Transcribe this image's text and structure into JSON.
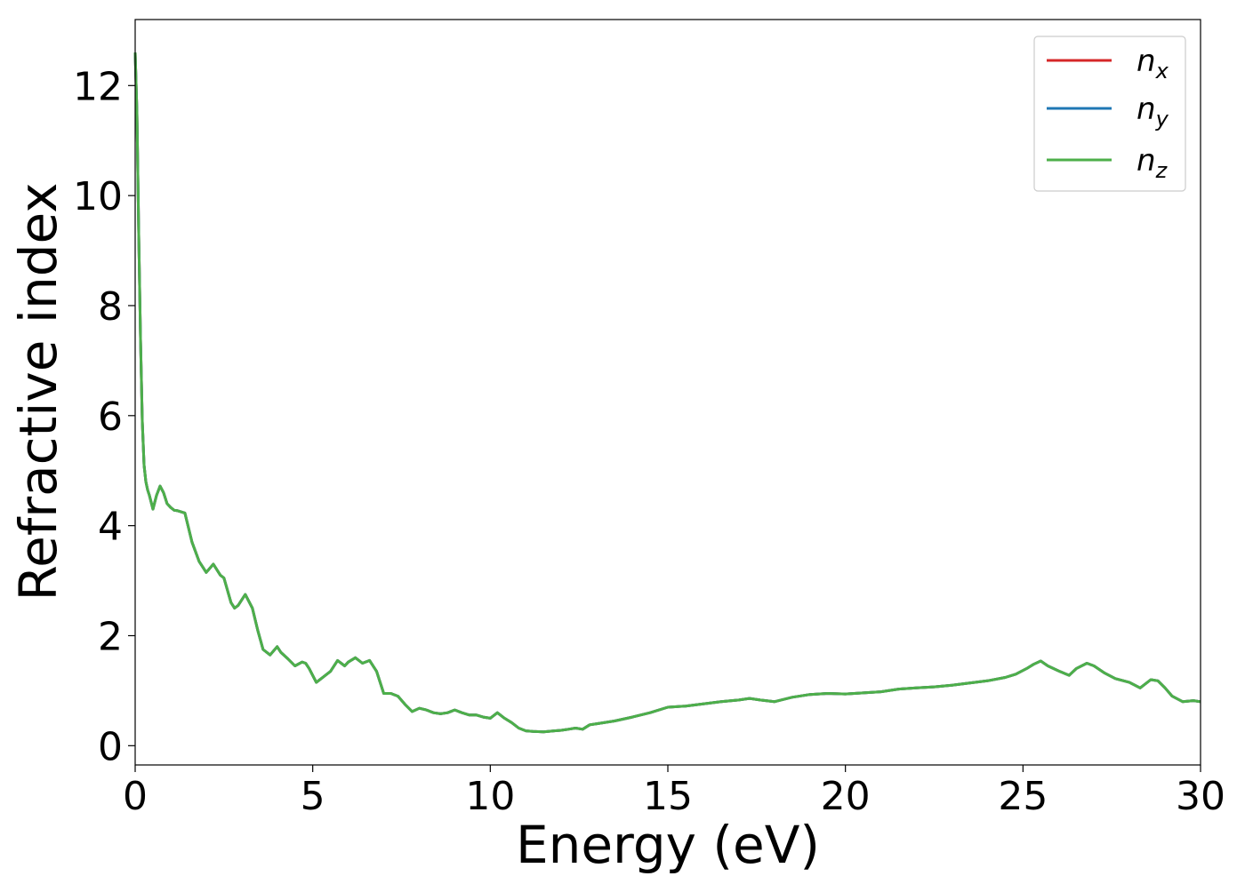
{
  "chart_data": {
    "type": "line",
    "xlabel": "Energy (eV)",
    "ylabel": "Refractive index",
    "xlim": [
      0,
      30
    ],
    "ylim": [
      -0.35,
      13.2
    ],
    "xticks": [
      0,
      5,
      10,
      15,
      20,
      25,
      30
    ],
    "yticks": [
      0,
      2,
      4,
      6,
      8,
      10,
      12
    ],
    "grid": false,
    "legend_position": "top-right",
    "series": [
      {
        "name": "n",
        "subscript": "x",
        "color": "#d62728"
      },
      {
        "name": "n",
        "subscript": "y",
        "color": "#1f77b4"
      },
      {
        "name": "n",
        "subscript": "z",
        "color": "#4daf4a"
      }
    ],
    "x": [
      0,
      0.05,
      0.1,
      0.15,
      0.2,
      0.25,
      0.3,
      0.35,
      0.4,
      0.5,
      0.6,
      0.7,
      0.8,
      0.9,
      1.0,
      1.1,
      1.2,
      1.4,
      1.6,
      1.8,
      1.9,
      2.0,
      2.2,
      2.4,
      2.5,
      2.7,
      2.8,
      2.9,
      3.1,
      3.3,
      3.45,
      3.6,
      3.8,
      4.0,
      4.1,
      4.3,
      4.5,
      4.7,
      4.8,
      4.9,
      5.1,
      5.3,
      5.5,
      5.7,
      5.9,
      6.0,
      6.2,
      6.4,
      6.6,
      6.8,
      7.0,
      7.2,
      7.4,
      7.6,
      7.8,
      8.0,
      8.2,
      8.4,
      8.6,
      8.8,
      9.0,
      9.2,
      9.4,
      9.6,
      9.8,
      10.0,
      10.2,
      10.4,
      10.6,
      10.8,
      11.0,
      11.2,
      11.5,
      11.8,
      12.0,
      12.2,
      12.4,
      12.6,
      12.8,
      13.0,
      13.5,
      14.0,
      14.5,
      15.0,
      15.5,
      16.0,
      16.5,
      17.0,
      17.3,
      17.6,
      18.0,
      18.5,
      19.0,
      19.5,
      20.0,
      20.5,
      21.0,
      21.5,
      22.0,
      22.5,
      23.0,
      23.5,
      24.0,
      24.5,
      24.8,
      25.1,
      25.3,
      25.5,
      25.7,
      26.0,
      26.3,
      26.5,
      26.8,
      27.0,
      27.3,
      27.6,
      28.0,
      28.3,
      28.6,
      28.8,
      29.0,
      29.2,
      29.5,
      29.8,
      30.0
    ],
    "y": [
      12.6,
      11.5,
      9.3,
      7.4,
      5.9,
      5.1,
      4.8,
      4.65,
      4.55,
      4.3,
      4.55,
      4.72,
      4.6,
      4.4,
      4.33,
      4.28,
      4.27,
      4.23,
      3.7,
      3.35,
      3.25,
      3.15,
      3.3,
      3.1,
      3.05,
      2.6,
      2.5,
      2.55,
      2.75,
      2.5,
      2.1,
      1.75,
      1.65,
      1.8,
      1.7,
      1.58,
      1.45,
      1.52,
      1.5,
      1.4,
      1.15,
      1.25,
      1.35,
      1.55,
      1.45,
      1.52,
      1.6,
      1.5,
      1.55,
      1.35,
      0.95,
      0.95,
      0.9,
      0.75,
      0.62,
      0.68,
      0.65,
      0.6,
      0.58,
      0.6,
      0.65,
      0.6,
      0.56,
      0.56,
      0.52,
      0.5,
      0.6,
      0.5,
      0.42,
      0.32,
      0.27,
      0.26,
      0.25,
      0.27,
      0.28,
      0.3,
      0.32,
      0.3,
      0.38,
      0.4,
      0.45,
      0.52,
      0.6,
      0.7,
      0.72,
      0.76,
      0.8,
      0.83,
      0.86,
      0.83,
      0.8,
      0.88,
      0.93,
      0.95,
      0.94,
      0.96,
      0.98,
      1.03,
      1.05,
      1.07,
      1.1,
      1.14,
      1.18,
      1.24,
      1.3,
      1.4,
      1.48,
      1.54,
      1.45,
      1.36,
      1.28,
      1.4,
      1.5,
      1.45,
      1.32,
      1.22,
      1.15,
      1.05,
      1.2,
      1.18,
      1.05,
      0.9,
      0.8,
      0.82,
      0.8
    ]
  }
}
